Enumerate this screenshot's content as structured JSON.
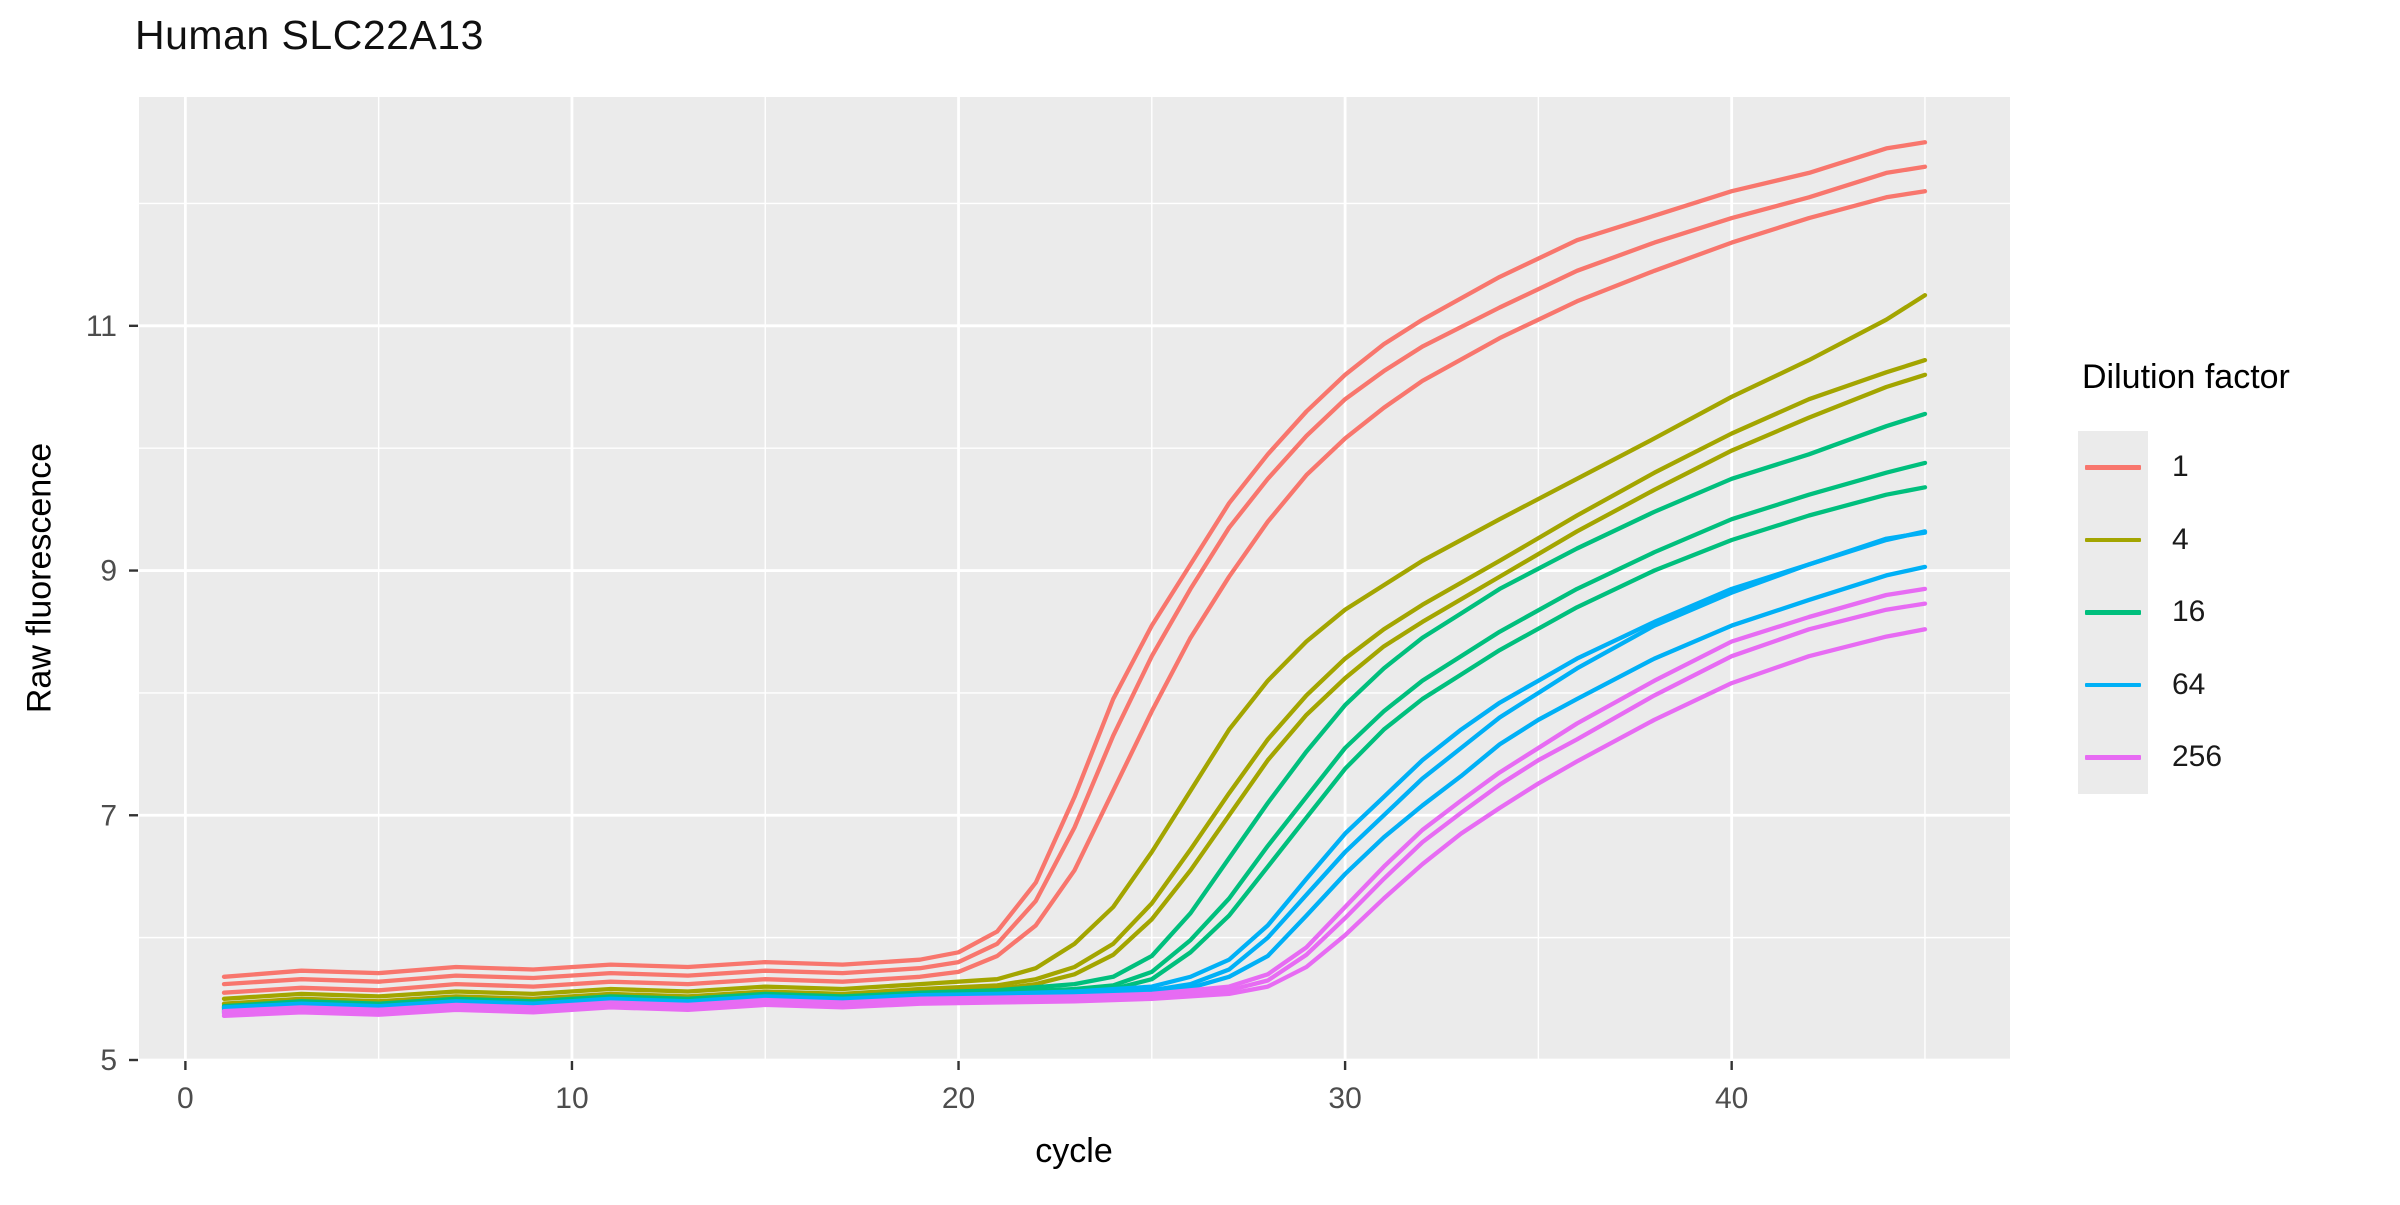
{
  "chart_data": {
    "type": "line",
    "title": "Human SLC22A13",
    "xlabel": "cycle",
    "ylabel": "Raw fluorescence",
    "xlim": [
      -1.2,
      47.2
    ],
    "ylim": [
      5,
      12.87
    ],
    "x_major_ticks": [
      0,
      10,
      20,
      30,
      40
    ],
    "x_minor_ticks": [
      5,
      15,
      25,
      35,
      45
    ],
    "y_major_ticks": [
      5,
      7,
      9,
      11
    ],
    "y_minor_ticks": [
      6,
      8,
      10,
      12
    ],
    "grid": "major+minor white on grey panel",
    "panel_fill": "#EBEBEB",
    "gridline_color": "#FFFFFF",
    "tick_mark_color": "#333333",
    "tick_label_color": "#4D4D4D",
    "legend": {
      "title": "Dilution factor",
      "position": "right",
      "items": [
        {
          "label": "1",
          "color": "#F8766D"
        },
        {
          "label": "4",
          "color": "#A3A500"
        },
        {
          "label": "16",
          "color": "#00BF7D"
        },
        {
          "label": "64",
          "color": "#00B0F6"
        },
        {
          "label": "256",
          "color": "#E76BF3"
        }
      ]
    },
    "groups": [
      {
        "dilution": "1",
        "color": "#F8766D",
        "series": [
          {
            "cycles": [
              1,
              3,
              5,
              7,
              9,
              11,
              13,
              15,
              17,
              19,
              20,
              21,
              22,
              23,
              24,
              25,
              26,
              27,
              28,
              29,
              30,
              31,
              32,
              34,
              36,
              38,
              40,
              42,
              44,
              45
            ],
            "values": [
              5.68,
              5.73,
              5.71,
              5.76,
              5.74,
              5.78,
              5.76,
              5.8,
              5.78,
              5.82,
              5.88,
              6.05,
              6.45,
              7.15,
              7.95,
              8.55,
              9.05,
              9.55,
              9.95,
              10.3,
              10.6,
              10.85,
              11.05,
              11.4,
              11.7,
              11.9,
              12.1,
              12.25,
              12.45,
              12.5
            ]
          },
          {
            "cycles": [
              1,
              3,
              5,
              7,
              9,
              11,
              13,
              15,
              17,
              19,
              20,
              21,
              22,
              23,
              24,
              25,
              26,
              27,
              28,
              29,
              30,
              31,
              32,
              34,
              36,
              38,
              40,
              42,
              44,
              45
            ],
            "values": [
              5.62,
              5.66,
              5.64,
              5.69,
              5.67,
              5.71,
              5.69,
              5.73,
              5.71,
              5.75,
              5.8,
              5.95,
              6.3,
              6.9,
              7.65,
              8.3,
              8.85,
              9.35,
              9.75,
              10.1,
              10.4,
              10.63,
              10.83,
              11.15,
              11.45,
              11.68,
              11.88,
              12.05,
              12.25,
              12.3
            ]
          },
          {
            "cycles": [
              1,
              3,
              5,
              7,
              9,
              11,
              13,
              15,
              17,
              19,
              20,
              21,
              22,
              23,
              24,
              25,
              26,
              27,
              28,
              29,
              30,
              31,
              32,
              34,
              36,
              38,
              40,
              42,
              44,
              45
            ],
            "values": [
              5.55,
              5.59,
              5.57,
              5.62,
              5.6,
              5.64,
              5.62,
              5.66,
              5.64,
              5.68,
              5.72,
              5.85,
              6.1,
              6.55,
              7.2,
              7.85,
              8.45,
              8.95,
              9.4,
              9.78,
              10.08,
              10.33,
              10.55,
              10.9,
              11.2,
              11.45,
              11.68,
              11.88,
              12.05,
              12.1
            ]
          }
        ]
      },
      {
        "dilution": "4",
        "color": "#A3A500",
        "series": [
          {
            "cycles": [
              1,
              3,
              5,
              7,
              9,
              11,
              13,
              15,
              17,
              19,
              21,
              22,
              23,
              24,
              25,
              26,
              27,
              28,
              29,
              30,
              31,
              32,
              34,
              36,
              38,
              40,
              42,
              44,
              45
            ],
            "values": [
              5.5,
              5.54,
              5.52,
              5.56,
              5.54,
              5.58,
              5.56,
              5.6,
              5.58,
              5.62,
              5.66,
              5.75,
              5.95,
              6.25,
              6.7,
              7.2,
              7.7,
              8.1,
              8.42,
              8.68,
              8.88,
              9.08,
              9.42,
              9.75,
              10.08,
              10.42,
              10.72,
              11.05,
              11.25
            ]
          },
          {
            "cycles": [
              1,
              3,
              5,
              7,
              9,
              11,
              13,
              15,
              17,
              19,
              21,
              22,
              23,
              24,
              25,
              26,
              27,
              28,
              29,
              30,
              31,
              32,
              34,
              36,
              38,
              40,
              42,
              44,
              45
            ],
            "values": [
              5.46,
              5.5,
              5.48,
              5.52,
              5.5,
              5.54,
              5.52,
              5.56,
              5.54,
              5.58,
              5.61,
              5.66,
              5.76,
              5.95,
              6.28,
              6.72,
              7.18,
              7.62,
              7.98,
              8.28,
              8.52,
              8.72,
              9.08,
              9.45,
              9.8,
              10.12,
              10.4,
              10.62,
              10.72
            ]
          },
          {
            "cycles": [
              1,
              3,
              5,
              7,
              9,
              11,
              13,
              15,
              17,
              19,
              21,
              22,
              23,
              24,
              25,
              26,
              27,
              28,
              29,
              30,
              31,
              32,
              34,
              36,
              38,
              40,
              42,
              44,
              45
            ],
            "values": [
              5.43,
              5.47,
              5.45,
              5.49,
              5.47,
              5.51,
              5.49,
              5.53,
              5.51,
              5.55,
              5.58,
              5.62,
              5.7,
              5.86,
              6.15,
              6.55,
              7.0,
              7.45,
              7.82,
              8.12,
              8.38,
              8.58,
              8.95,
              9.32,
              9.66,
              9.98,
              10.25,
              10.5,
              10.6
            ]
          }
        ]
      },
      {
        "dilution": "16",
        "color": "#00BF7D",
        "series": [
          {
            "cycles": [
              1,
              3,
              5,
              7,
              9,
              11,
              13,
              15,
              17,
              19,
              21,
              23,
              24,
              25,
              26,
              27,
              28,
              29,
              30,
              31,
              32,
              33,
              34,
              36,
              38,
              40,
              42,
              44,
              45
            ],
            "values": [
              5.44,
              5.48,
              5.46,
              5.5,
              5.48,
              5.52,
              5.5,
              5.54,
              5.52,
              5.55,
              5.57,
              5.62,
              5.68,
              5.85,
              6.2,
              6.65,
              7.1,
              7.52,
              7.9,
              8.2,
              8.45,
              8.65,
              8.85,
              9.18,
              9.48,
              9.75,
              9.95,
              10.18,
              10.28
            ]
          },
          {
            "cycles": [
              1,
              3,
              5,
              7,
              9,
              11,
              13,
              15,
              17,
              19,
              21,
              23,
              24,
              25,
              26,
              27,
              28,
              29,
              30,
              31,
              32,
              33,
              34,
              36,
              38,
              40,
              42,
              44,
              45
            ],
            "values": [
              5.42,
              5.46,
              5.44,
              5.48,
              5.46,
              5.5,
              5.48,
              5.52,
              5.5,
              5.53,
              5.55,
              5.58,
              5.61,
              5.72,
              5.98,
              6.32,
              6.75,
              7.15,
              7.55,
              7.85,
              8.1,
              8.3,
              8.5,
              8.85,
              9.15,
              9.42,
              9.62,
              9.8,
              9.88
            ]
          },
          {
            "cycles": [
              1,
              3,
              5,
              7,
              9,
              11,
              13,
              15,
              17,
              19,
              21,
              23,
              24,
              25,
              26,
              27,
              28,
              29,
              30,
              31,
              32,
              33,
              34,
              36,
              38,
              40,
              42,
              44,
              45
            ],
            "values": [
              5.4,
              5.44,
              5.42,
              5.46,
              5.44,
              5.48,
              5.46,
              5.5,
              5.48,
              5.51,
              5.53,
              5.56,
              5.58,
              5.66,
              5.88,
              6.18,
              6.58,
              6.98,
              7.38,
              7.7,
              7.95,
              8.15,
              8.35,
              8.7,
              9.0,
              9.25,
              9.45,
              9.62,
              9.68
            ]
          }
        ]
      },
      {
        "dilution": "64",
        "color": "#00B0F6",
        "series": [
          {
            "cycles": [
              1,
              3,
              5,
              7,
              9,
              11,
              13,
              15,
              17,
              19,
              21,
              23,
              25,
              26,
              27,
              28,
              29,
              30,
              31,
              32,
              33,
              34,
              35,
              36,
              38,
              40,
              42,
              44,
              45
            ],
            "values": [
              5.43,
              5.46,
              5.44,
              5.48,
              5.46,
              5.5,
              5.48,
              5.52,
              5.5,
              5.53,
              5.54,
              5.56,
              5.6,
              5.68,
              5.82,
              6.1,
              6.48,
              6.85,
              7.15,
              7.45,
              7.7,
              7.92,
              8.1,
              8.28,
              8.58,
              8.85,
              9.05,
              9.25,
              9.32
            ]
          },
          {
            "cycles": [
              1,
              3,
              5,
              7,
              9,
              11,
              13,
              15,
              17,
              19,
              21,
              23,
              25,
              26,
              27,
              28,
              29,
              30,
              31,
              32,
              33,
              34,
              35,
              36,
              38,
              40,
              42,
              44,
              45
            ],
            "values": [
              5.41,
              5.44,
              5.42,
              5.46,
              5.44,
              5.48,
              5.46,
              5.5,
              5.48,
              5.51,
              5.52,
              5.54,
              5.57,
              5.62,
              5.74,
              6.0,
              6.35,
              6.7,
              7.0,
              7.3,
              7.55,
              7.8,
              8.0,
              8.2,
              8.55,
              8.82,
              9.05,
              9.26,
              9.31
            ]
          },
          {
            "cycles": [
              1,
              3,
              5,
              7,
              9,
              11,
              13,
              15,
              17,
              19,
              21,
              23,
              25,
              26,
              27,
              28,
              29,
              30,
              31,
              32,
              33,
              34,
              35,
              36,
              38,
              40,
              42,
              44,
              45
            ],
            "values": [
              5.39,
              5.42,
              5.4,
              5.44,
              5.42,
              5.46,
              5.44,
              5.48,
              5.46,
              5.49,
              5.5,
              5.52,
              5.55,
              5.59,
              5.68,
              5.85,
              6.18,
              6.52,
              6.82,
              7.08,
              7.32,
              7.58,
              7.78,
              7.95,
              8.28,
              8.55,
              8.76,
              8.96,
              9.03
            ]
          }
        ]
      },
      {
        "dilution": "256",
        "color": "#E76BF3",
        "series": [
          {
            "cycles": [
              1,
              3,
              5,
              7,
              9,
              11,
              13,
              15,
              17,
              19,
              21,
              23,
              25,
              27,
              28,
              29,
              30,
              31,
              32,
              33,
              34,
              35,
              36,
              38,
              40,
              42,
              44,
              45
            ],
            "values": [
              5.4,
              5.43,
              5.41,
              5.45,
              5.43,
              5.47,
              5.45,
              5.49,
              5.47,
              5.5,
              5.51,
              5.52,
              5.54,
              5.6,
              5.7,
              5.92,
              6.25,
              6.58,
              6.88,
              7.12,
              7.35,
              7.55,
              7.75,
              8.1,
              8.42,
              8.62,
              8.8,
              8.85
            ]
          },
          {
            "cycles": [
              1,
              3,
              5,
              7,
              9,
              11,
              13,
              15,
              17,
              19,
              21,
              23,
              25,
              27,
              28,
              29,
              30,
              31,
              32,
              33,
              34,
              35,
              36,
              38,
              40,
              42,
              44,
              45
            ],
            "values": [
              5.38,
              5.41,
              5.39,
              5.43,
              5.41,
              5.45,
              5.43,
              5.47,
              5.45,
              5.48,
              5.49,
              5.5,
              5.52,
              5.57,
              5.65,
              5.86,
              6.16,
              6.48,
              6.78,
              7.02,
              7.25,
              7.45,
              7.62,
              7.98,
              8.3,
              8.52,
              8.68,
              8.73
            ]
          },
          {
            "cycles": [
              1,
              3,
              5,
              7,
              9,
              11,
              13,
              15,
              17,
              19,
              21,
              23,
              25,
              27,
              28,
              29,
              30,
              31,
              32,
              33,
              34,
              35,
              36,
              38,
              40,
              42,
              44,
              45
            ],
            "values": [
              5.36,
              5.39,
              5.37,
              5.41,
              5.39,
              5.43,
              5.41,
              5.45,
              5.43,
              5.46,
              5.47,
              5.48,
              5.5,
              5.54,
              5.6,
              5.76,
              6.02,
              6.32,
              6.6,
              6.85,
              7.06,
              7.26,
              7.44,
              7.78,
              8.08,
              8.3,
              8.46,
              8.52
            ]
          }
        ]
      }
    ]
  }
}
